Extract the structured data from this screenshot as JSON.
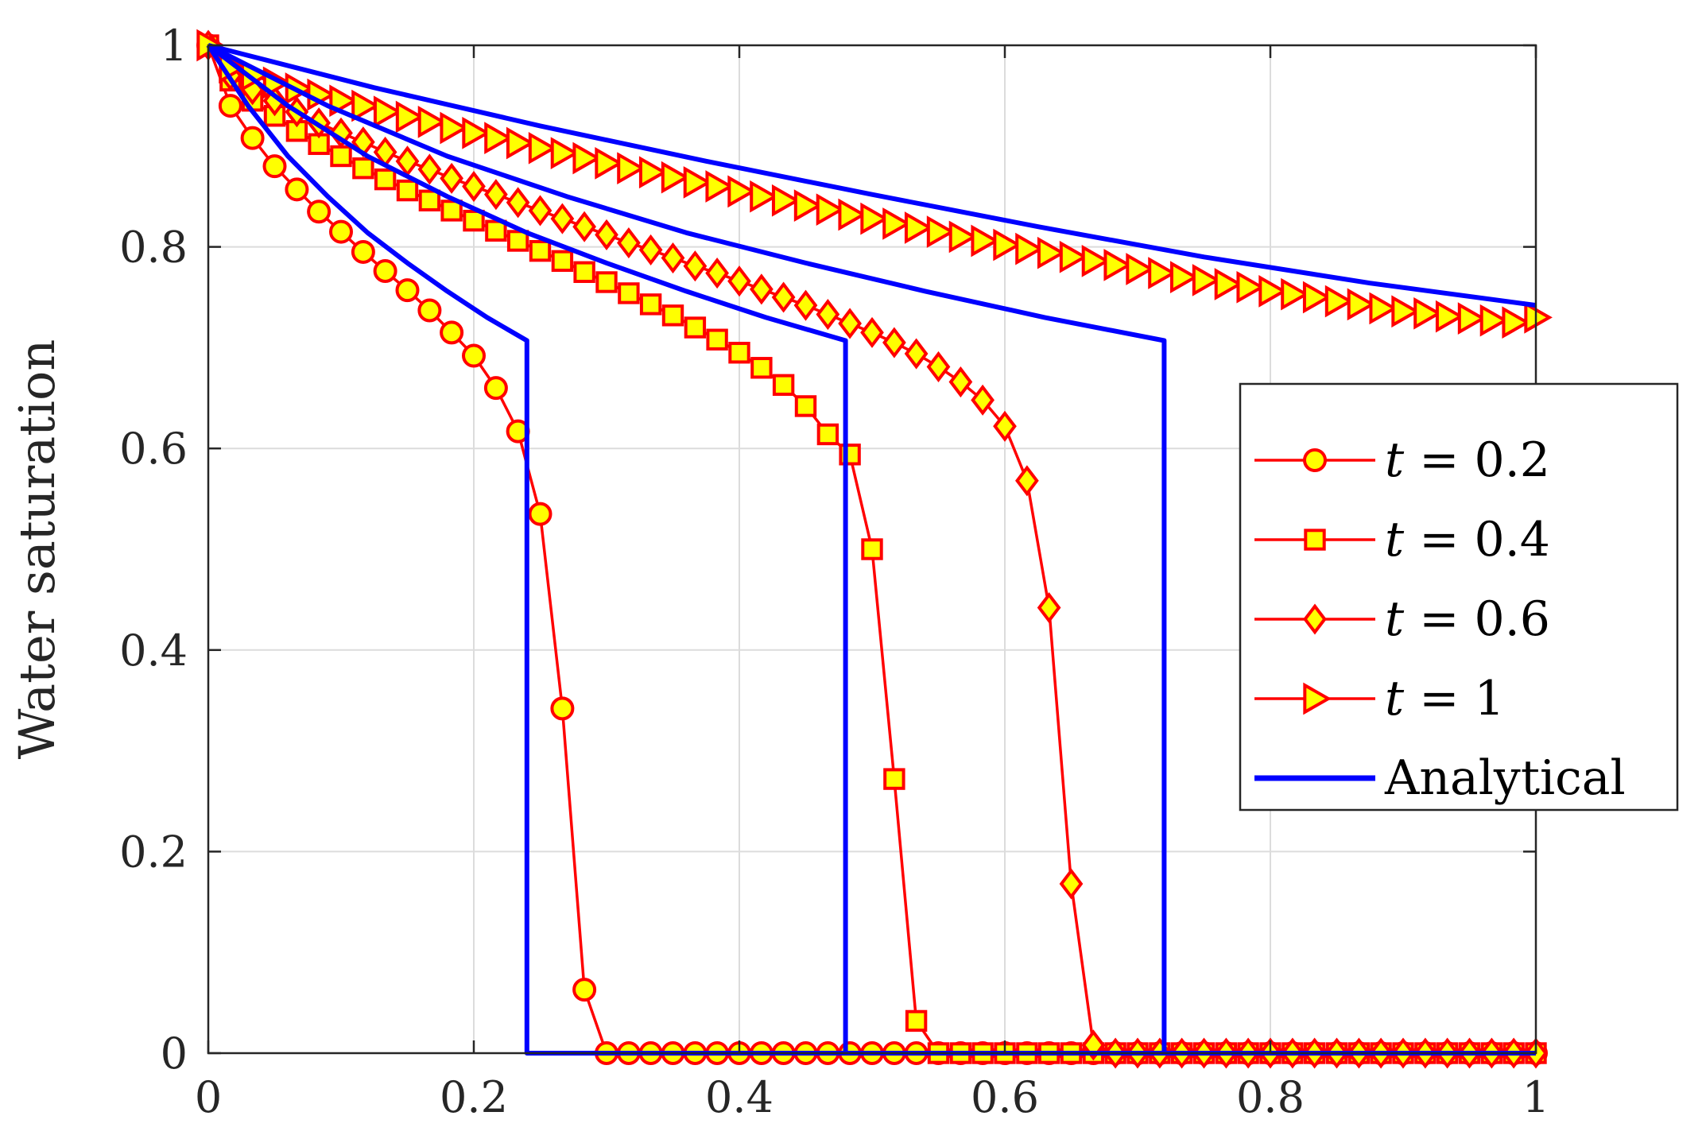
{
  "colors": {
    "numeric_line": "#ff0000",
    "marker_fill": "#ffff00",
    "analytical_line": "#0000ff",
    "grid": "#dcdcdc",
    "axis": "#262626"
  },
  "chart_data": {
    "type": "line",
    "xlabel": "",
    "ylabel": "Water saturation",
    "xlim": [
      0,
      1
    ],
    "ylim": [
      0,
      1
    ],
    "xticks": [
      "0",
      "0.2",
      "0.4",
      "0.6",
      "0.8",
      "1"
    ],
    "yticks": [
      "0",
      "0.2",
      "0.4",
      "0.6",
      "0.8",
      "1"
    ],
    "grid": true,
    "legend_position": "right",
    "legend": [
      {
        "var": "t",
        "rest": " = 0.2",
        "marker": "circle"
      },
      {
        "var": "t",
        "rest": " = 0.4",
        "marker": "square"
      },
      {
        "var": "t",
        "rest": " = 0.6",
        "marker": "diamond"
      },
      {
        "var": "t",
        "rest": " = 1",
        "marker": "triangle-right"
      },
      {
        "var": "",
        "rest": "Analytical",
        "marker": "none"
      }
    ],
    "series": [
      {
        "marker": "circle",
        "x": [
          0,
          0.0167,
          0.0333,
          0.05,
          0.0667,
          0.0833,
          0.1,
          0.1167,
          0.1333,
          0.15,
          0.1667,
          0.1833,
          0.2,
          0.2167,
          0.2333,
          0.25,
          0.2667,
          0.2833,
          0.3,
          0.3167,
          0.3333,
          0.35,
          0.3667,
          0.3833,
          0.4,
          0.4167,
          0.4333,
          0.45,
          0.4667,
          0.4833,
          0.5,
          0.5167,
          0.5333,
          0.55,
          0.5667,
          0.5833,
          0.6,
          0.6167,
          0.6333,
          0.65,
          0.6667,
          0.6833,
          0.7,
          0.7167,
          0.7333,
          0.75,
          0.7667,
          0.7833,
          0.8,
          0.8167,
          0.8333,
          0.85,
          0.8667,
          0.8833,
          0.9,
          0.9167,
          0.9333,
          0.95,
          0.9667,
          0.9833,
          1
        ],
        "y": [
          1.0,
          0.94,
          0.908,
          0.88,
          0.857,
          0.835,
          0.815,
          0.795,
          0.776,
          0.757,
          0.737,
          0.715,
          0.692,
          0.66,
          0.617,
          0.535,
          0.342,
          0.063,
          0,
          0,
          0,
          0,
          0,
          0,
          0,
          0,
          0,
          0,
          0,
          0,
          0,
          0,
          0,
          0,
          0,
          0,
          0,
          0,
          0,
          0,
          0,
          0,
          0,
          0,
          0,
          0,
          0,
          0,
          0,
          0,
          0,
          0,
          0,
          0,
          0,
          0,
          0,
          0,
          0,
          0,
          0
        ]
      },
      {
        "marker": "square",
        "x": [
          0,
          0.0167,
          0.0333,
          0.05,
          0.0667,
          0.0833,
          0.1,
          0.1167,
          0.1333,
          0.15,
          0.1667,
          0.1833,
          0.2,
          0.2167,
          0.2333,
          0.25,
          0.2667,
          0.2833,
          0.3,
          0.3167,
          0.3333,
          0.35,
          0.3667,
          0.3833,
          0.4,
          0.4167,
          0.4333,
          0.45,
          0.4667,
          0.4833,
          0.5,
          0.5167,
          0.5333,
          0.55,
          0.5667,
          0.5833,
          0.6,
          0.6167,
          0.6333,
          0.65,
          0.6667,
          0.6833,
          0.7,
          0.7167,
          0.7333,
          0.75,
          0.7667,
          0.7833,
          0.8,
          0.8167,
          0.8333,
          0.85,
          0.8667,
          0.8833,
          0.9,
          0.9167,
          0.9333,
          0.95,
          0.9667,
          0.9833,
          1
        ],
        "y": [
          1.0,
          0.965,
          0.945,
          0.93,
          0.915,
          0.902,
          0.89,
          0.878,
          0.867,
          0.856,
          0.846,
          0.836,
          0.826,
          0.816,
          0.806,
          0.796,
          0.786,
          0.775,
          0.765,
          0.754,
          0.743,
          0.732,
          0.72,
          0.708,
          0.695,
          0.68,
          0.663,
          0.642,
          0.614,
          0.594,
          0.5,
          0.272,
          0.032,
          0,
          0,
          0,
          0,
          0,
          0,
          0,
          0,
          0,
          0,
          0,
          0,
          0,
          0,
          0,
          0,
          0,
          0,
          0,
          0,
          0,
          0,
          0,
          0,
          0,
          0,
          0,
          0
        ]
      },
      {
        "marker": "diamond",
        "x": [
          0,
          0.0167,
          0.0333,
          0.05,
          0.0667,
          0.0833,
          0.1,
          0.1167,
          0.1333,
          0.15,
          0.1667,
          0.1833,
          0.2,
          0.2167,
          0.2333,
          0.25,
          0.2667,
          0.2833,
          0.3,
          0.3167,
          0.3333,
          0.35,
          0.3667,
          0.3833,
          0.4,
          0.4167,
          0.4333,
          0.45,
          0.4667,
          0.4833,
          0.5,
          0.5167,
          0.5333,
          0.55,
          0.5667,
          0.5833,
          0.6,
          0.6167,
          0.6333,
          0.65,
          0.6667,
          0.6833,
          0.7,
          0.7167,
          0.7333,
          0.75,
          0.7667,
          0.7833,
          0.8,
          0.8167,
          0.8333,
          0.85,
          0.8667,
          0.8833,
          0.9,
          0.9167,
          0.9333,
          0.95,
          0.9667,
          0.9833,
          1
        ],
        "y": [
          1.0,
          0.97,
          0.956,
          0.945,
          0.934,
          0.923,
          0.913,
          0.904,
          0.894,
          0.885,
          0.877,
          0.868,
          0.86,
          0.852,
          0.844,
          0.836,
          0.828,
          0.82,
          0.812,
          0.804,
          0.797,
          0.789,
          0.781,
          0.774,
          0.766,
          0.758,
          0.75,
          0.742,
          0.733,
          0.724,
          0.715,
          0.705,
          0.694,
          0.681,
          0.666,
          0.648,
          0.622,
          0.568,
          0.442,
          0.168,
          0.008,
          0,
          0,
          0,
          0,
          0,
          0,
          0,
          0,
          0,
          0,
          0,
          0,
          0,
          0,
          0,
          0,
          0,
          0,
          0,
          0
        ]
      },
      {
        "marker": "triangle-right",
        "x": [
          0,
          0.0167,
          0.0333,
          0.05,
          0.0667,
          0.0833,
          0.1,
          0.1167,
          0.1333,
          0.15,
          0.1667,
          0.1833,
          0.2,
          0.2167,
          0.2333,
          0.25,
          0.2667,
          0.2833,
          0.3,
          0.3167,
          0.3333,
          0.35,
          0.3667,
          0.3833,
          0.4,
          0.4167,
          0.4333,
          0.45,
          0.4667,
          0.4833,
          0.5,
          0.5167,
          0.5333,
          0.55,
          0.5667,
          0.5833,
          0.6,
          0.6167,
          0.6333,
          0.65,
          0.6667,
          0.6833,
          0.7,
          0.7167,
          0.7333,
          0.75,
          0.7667,
          0.7833,
          0.8,
          0.8167,
          0.8333,
          0.85,
          0.8667,
          0.8833,
          0.9,
          0.9167,
          0.9333,
          0.95,
          0.9667,
          0.9833,
          1
        ],
        "y": [
          1.0,
          0.978,
          0.97,
          0.963,
          0.957,
          0.951,
          0.945,
          0.94,
          0.934,
          0.929,
          0.924,
          0.918,
          0.913,
          0.908,
          0.903,
          0.898,
          0.893,
          0.888,
          0.883,
          0.878,
          0.874,
          0.869,
          0.864,
          0.86,
          0.855,
          0.85,
          0.846,
          0.841,
          0.837,
          0.832,
          0.828,
          0.823,
          0.819,
          0.815,
          0.81,
          0.806,
          0.802,
          0.798,
          0.794,
          0.79,
          0.786,
          0.782,
          0.778,
          0.774,
          0.77,
          0.767,
          0.763,
          0.76,
          0.756,
          0.753,
          0.75,
          0.746,
          0.743,
          0.739,
          0.736,
          0.734,
          0.731,
          0.729,
          0.727,
          0.725,
          0.73
        ]
      },
      {
        "marker": "none",
        "x": [
          0,
          0.03,
          0.06,
          0.09,
          0.12,
          0.15,
          0.18,
          0.21,
          0.24,
          0.24,
          1
        ],
        "y": [
          1.0,
          0.94,
          0.89,
          0.85,
          0.814,
          0.784,
          0.756,
          0.73,
          0.707,
          0,
          0
        ]
      },
      {
        "marker": "none",
        "x": [
          0,
          0.06,
          0.12,
          0.18,
          0.24,
          0.3,
          0.36,
          0.42,
          0.48,
          0.48,
          1
        ],
        "y": [
          1.0,
          0.94,
          0.89,
          0.85,
          0.814,
          0.784,
          0.756,
          0.73,
          0.707,
          0,
          0
        ]
      },
      {
        "marker": "none",
        "x": [
          0,
          0.09,
          0.18,
          0.27,
          0.36,
          0.45,
          0.54,
          0.63,
          0.72,
          0.72,
          1
        ],
        "y": [
          1.0,
          0.94,
          0.89,
          0.85,
          0.814,
          0.784,
          0.756,
          0.73,
          0.707,
          0,
          0
        ]
      },
      {
        "marker": "none",
        "x": [
          0,
          0.125,
          0.25,
          0.375,
          0.5,
          0.625,
          0.75,
          0.875,
          1
        ],
        "y": [
          1.0,
          0.958,
          0.92,
          0.885,
          0.852,
          0.82,
          0.79,
          0.764,
          0.742
        ]
      }
    ]
  }
}
